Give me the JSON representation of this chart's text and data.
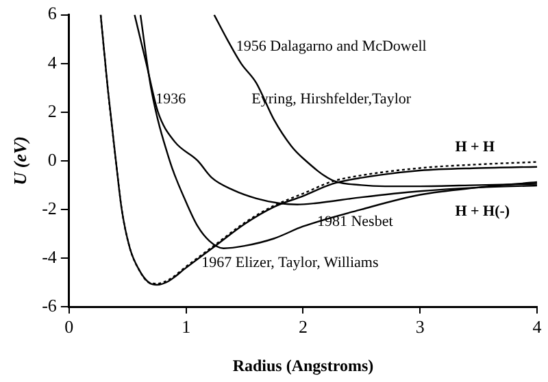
{
  "chart_data": {
    "type": "line",
    "xlabel": "Radius (Angstroms)",
    "ylabel": "U (eV)",
    "xlim": [
      0,
      4
    ],
    "ylim": [
      -6,
      6
    ],
    "xticks": [
      0,
      1,
      2,
      3,
      4
    ],
    "yticks": [
      -6,
      -4,
      -2,
      0,
      2,
      4,
      6
    ],
    "grid": false,
    "legend": false,
    "marker": "none",
    "series": [
      {
        "color": "#000000",
        "x": [
          0.27,
          0.33,
          0.4,
          0.45,
          0.52,
          0.6,
          0.68,
          0.75,
          0.85,
          1,
          1.25,
          1.5,
          1.75,
          2,
          2.25,
          2.5,
          3,
          3.5,
          4
        ],
        "values": [
          6,
          3,
          0,
          -2,
          -3.6,
          -4.5,
          -5,
          -5.1,
          -4.95,
          -4.4,
          -3.5,
          -2.6,
          -1.9,
          -1.45,
          -0.95,
          -0.7,
          -0.4,
          -0.3,
          -0.25
        ]
      },
      {
        "color": "#000000",
        "line_style": "dotted",
        "x": [
          0.27,
          0.33,
          0.4,
          0.45,
          0.52,
          0.6,
          0.68,
          0.75,
          0.85,
          1,
          1.25,
          1.5,
          1.75,
          2,
          2.25,
          2.5,
          3,
          3.5,
          4
        ],
        "values": [
          6,
          3,
          0,
          -2,
          -3.6,
          -4.5,
          -5,
          -5.05,
          -4.9,
          -4.35,
          -3.45,
          -2.55,
          -1.85,
          -1.35,
          -0.85,
          -0.6,
          -0.3,
          -0.15,
          -0.05
        ]
      },
      {
        "color": "#000000",
        "x": [
          0.61,
          0.7,
          0.86,
          1,
          1.1,
          1.2,
          1.32,
          1.5,
          1.75,
          2,
          2.5,
          3,
          3.5,
          4
        ],
        "values": [
          6,
          3,
          0,
          -1.7,
          -2.7,
          -3.3,
          -3.6,
          -3.5,
          -3.2,
          -2.7,
          -2,
          -1.4,
          -1.1,
          -0.88
        ]
      },
      {
        "color": "#000000",
        "x": [
          0.56,
          0.66,
          0.76,
          0.9,
          1.1,
          1.22,
          1.4,
          1.6,
          1.8,
          1.95,
          2.1,
          2.5,
          3,
          3.5,
          4
        ],
        "values": [
          6,
          4,
          2,
          0.8,
          0,
          -0.7,
          -1.2,
          -1.55,
          -1.75,
          -1.8,
          -1.75,
          -1.5,
          -1.25,
          -1.1,
          -1.02
        ]
      },
      {
        "color": "#000000",
        "x": [
          1.24,
          1.35,
          1.47,
          1.6,
          1.75,
          1.9,
          2,
          2.25,
          2.5,
          2.7,
          3,
          3.5,
          4
        ],
        "values": [
          6,
          5,
          4,
          3.2,
          1.7,
          0.6,
          0.1,
          -0.8,
          -1,
          -1.05,
          -1.05,
          -1,
          -0.95
        ]
      }
    ],
    "annotations": [
      "1956 Dalagarno and McDowell",
      "1936",
      "Eyring, Hirshfelder,Taylor",
      "H + H",
      "H + H(-)",
      "1981 Nesbet",
      "1967 Elizer, Taylor, Williams"
    ]
  }
}
